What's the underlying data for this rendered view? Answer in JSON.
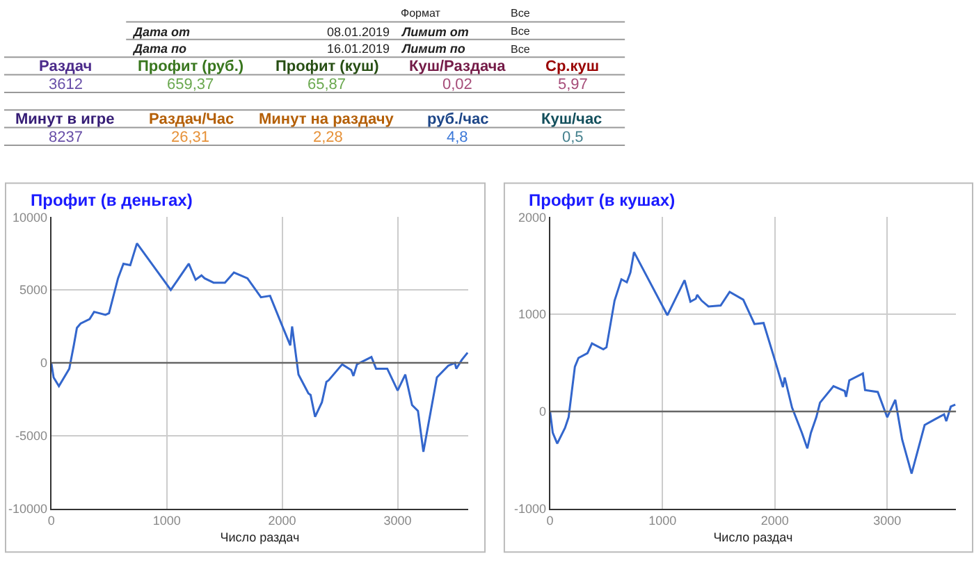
{
  "chart_data": [
    {
      "type": "other",
      "annotations": [
        "Формат",
        "Все",
        "Дата от",
        "08.01.2019",
        "Лимит от",
        "Все",
        "Дата по",
        "16.01.2019",
        "Лимит по",
        "Все",
        "Раздач",
        "Профит (руб.)",
        "Профит (куш)",
        "Куш/Раздача",
        "Ср.куш",
        "3612",
        "659,37",
        "65,87",
        "0,02",
        "5,97",
        "Минут в игре",
        "Раздач/Час",
        "Минут на раздачу",
        "руб./час",
        "Куш/час",
        "8237",
        "26,31",
        "2,28",
        "4,8",
        "0,5"
      ]
    },
    {
      "type": "line",
      "title": "Профит (в деньгах)",
      "xlabel": "Число раздач",
      "xlim": [
        0,
        3612
      ],
      "xticks": [
        0,
        1000,
        2000,
        3000
      ],
      "ylim": [
        -10000,
        10000
      ],
      "yticks": [
        -10000,
        -5000,
        0,
        5000,
        10000
      ],
      "grid": true,
      "ref_lines": [
        {
          "axis": "y",
          "value": 0,
          "color": "#666666"
        }
      ],
      "series": [
        {
          "color": "#3366cc",
          "x": [
            0,
            20,
            66,
            156,
            195,
            222,
            254,
            332,
            371,
            469,
            500,
            578,
            625,
            684,
            711,
            742,
            1035,
            1191,
            1250,
            1301,
            1328,
            1406,
            1504,
            1582,
            1699,
            1816,
            1895,
            1992,
            2070,
            2086,
            2141,
            2227,
            2246,
            2285,
            2344,
            2383,
            2402,
            2520,
            2598,
            2617,
            2648,
            2773,
            2813,
            2910,
            3000,
            3066,
            3125,
            3176,
            3223,
            3340,
            3438,
            3496,
            3508,
            3555,
            3606
          ],
          "values": [
            0,
            -1000,
            -1600,
            -400,
            1200,
            2400,
            2700,
            3000,
            3500,
            3300,
            3400,
            5800,
            6800,
            6700,
            7400,
            8200,
            5000,
            6800,
            5700,
            6000,
            5800,
            5500,
            5500,
            6200,
            5800,
            4500,
            4600,
            2700,
            1200,
            2500,
            -800,
            -2100,
            -2200,
            -3700,
            -2700,
            -1300,
            -1200,
            -100,
            -500,
            -900,
            -100,
            400,
            -400,
            -400,
            -1900,
            -800,
            -2900,
            -3300,
            -6100,
            -1000,
            -200,
            0,
            -400,
            200,
            700
          ]
        }
      ]
    },
    {
      "type": "line",
      "title": "Профит (в кушах)",
      "xlabel": "Число раздач",
      "xlim": [
        0,
        3612
      ],
      "xticks": [
        0,
        1000,
        2000,
        3000
      ],
      "ylim": [
        -1000,
        2000
      ],
      "yticks": [
        -1000,
        0,
        1000,
        2000
      ],
      "grid": true,
      "ref_lines": [
        {
          "axis": "y",
          "value": 0,
          "color": "#666666"
        }
      ],
      "series": [
        {
          "color": "#3366cc",
          "x": [
            0,
            24,
            64,
            133,
            165,
            193,
            221,
            253,
            333,
            373,
            474,
            502,
            574,
            635,
            683,
            715,
            747,
            1044,
            1197,
            1249,
            1297,
            1309,
            1349,
            1410,
            1518,
            1598,
            1719,
            1819,
            1900,
            2000,
            2072,
            2088,
            2153,
            2241,
            2289,
            2321,
            2369,
            2402,
            2522,
            2622,
            2634,
            2663,
            2783,
            2803,
            2916,
            3000,
            3072,
            3133,
            3217,
            3333,
            3426,
            3506,
            3526,
            3566,
            3606
          ],
          "values": [
            0,
            -220,
            -330,
            -170,
            -60,
            200,
            460,
            550,
            600,
            700,
            640,
            660,
            1140,
            1360,
            1330,
            1430,
            1640,
            990,
            1350,
            1130,
            1160,
            1200,
            1140,
            1080,
            1090,
            1230,
            1150,
            900,
            910,
            530,
            250,
            350,
            40,
            -220,
            -380,
            -220,
            -60,
            90,
            260,
            210,
            150,
            320,
            390,
            220,
            200,
            -60,
            120,
            -290,
            -640,
            -140,
            -80,
            -30,
            -100,
            50,
            70
          ]
        }
      ]
    }
  ]
}
